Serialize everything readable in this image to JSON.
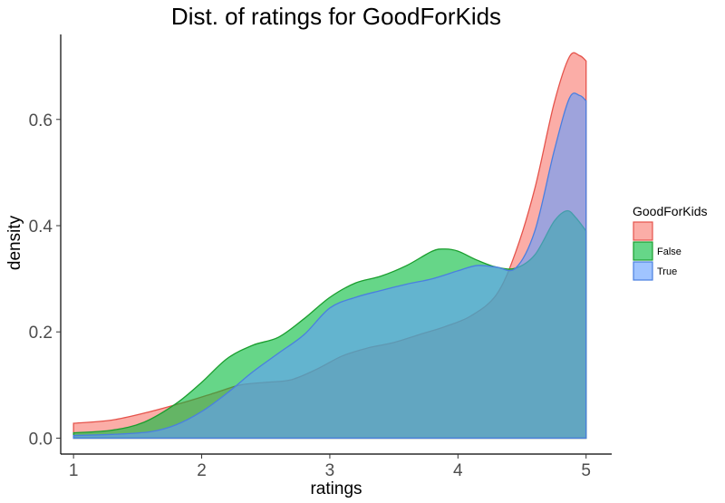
{
  "chart_data": {
    "type": "area",
    "title": "Dist. of ratings for GoodForKids",
    "xlabel": "ratings",
    "ylabel": "density",
    "xlim": [
      0.9,
      5.2
    ],
    "ylim": [
      -0.03,
      0.76
    ],
    "xticks": [
      1,
      2,
      3,
      4,
      5
    ],
    "xtick_labels": [
      "1",
      "2",
      "3",
      "4",
      "5"
    ],
    "yticks": [
      0,
      0.2,
      0.4,
      0.6
    ],
    "ytick_labels": [
      "0.0",
      "0.2",
      "0.4",
      "0.6"
    ],
    "grid": false,
    "legend": {
      "title": "GoodForKids",
      "placement": "right",
      "entries": [
        "",
        "False",
        "True"
      ]
    },
    "series": [
      {
        "label": "",
        "fill": "#F8766D",
        "stroke": "#E5534B",
        "points": [
          [
            1,
            0.028
          ],
          [
            1.3,
            0.034
          ],
          [
            1.6,
            0.05
          ],
          [
            1.9,
            0.07
          ],
          [
            2.1,
            0.085
          ],
          [
            2.3,
            0.1
          ],
          [
            2.5,
            0.105
          ],
          [
            2.7,
            0.11
          ],
          [
            2.9,
            0.13
          ],
          [
            3.1,
            0.155
          ],
          [
            3.3,
            0.17
          ],
          [
            3.5,
            0.18
          ],
          [
            3.7,
            0.195
          ],
          [
            3.9,
            0.21
          ],
          [
            4.1,
            0.23
          ],
          [
            4.3,
            0.27
          ],
          [
            4.45,
            0.35
          ],
          [
            4.6,
            0.47
          ],
          [
            4.75,
            0.63
          ],
          [
            4.87,
            0.718
          ],
          [
            4.95,
            0.72
          ],
          [
            5,
            0.71
          ]
        ]
      },
      {
        "label": "False",
        "fill": "#00BA38",
        "stroke": "#1A9E2E",
        "points": [
          [
            1,
            0.01
          ],
          [
            1.3,
            0.015
          ],
          [
            1.55,
            0.03
          ],
          [
            1.8,
            0.065
          ],
          [
            2,
            0.105
          ],
          [
            2.2,
            0.15
          ],
          [
            2.4,
            0.175
          ],
          [
            2.6,
            0.19
          ],
          [
            2.8,
            0.225
          ],
          [
            3,
            0.265
          ],
          [
            3.2,
            0.292
          ],
          [
            3.4,
            0.305
          ],
          [
            3.6,
            0.325
          ],
          [
            3.8,
            0.352
          ],
          [
            3.9,
            0.356
          ],
          [
            4,
            0.352
          ],
          [
            4.15,
            0.335
          ],
          [
            4.3,
            0.322
          ],
          [
            4.45,
            0.32
          ],
          [
            4.6,
            0.345
          ],
          [
            4.75,
            0.408
          ],
          [
            4.85,
            0.428
          ],
          [
            4.92,
            0.415
          ],
          [
            5,
            0.39
          ]
        ]
      },
      {
        "label": "True",
        "fill": "#619CFF",
        "stroke": "#4A7FE0",
        "points": [
          [
            1,
            0.005
          ],
          [
            1.3,
            0.007
          ],
          [
            1.6,
            0.012
          ],
          [
            1.8,
            0.025
          ],
          [
            2,
            0.05
          ],
          [
            2.2,
            0.085
          ],
          [
            2.4,
            0.125
          ],
          [
            2.6,
            0.16
          ],
          [
            2.8,
            0.195
          ],
          [
            3,
            0.245
          ],
          [
            3.2,
            0.265
          ],
          [
            3.4,
            0.278
          ],
          [
            3.6,
            0.29
          ],
          [
            3.8,
            0.3
          ],
          [
            4,
            0.315
          ],
          [
            4.15,
            0.325
          ],
          [
            4.3,
            0.322
          ],
          [
            4.45,
            0.32
          ],
          [
            4.6,
            0.39
          ],
          [
            4.75,
            0.54
          ],
          [
            4.87,
            0.64
          ],
          [
            4.95,
            0.645
          ],
          [
            5,
            0.635
          ]
        ]
      }
    ]
  }
}
